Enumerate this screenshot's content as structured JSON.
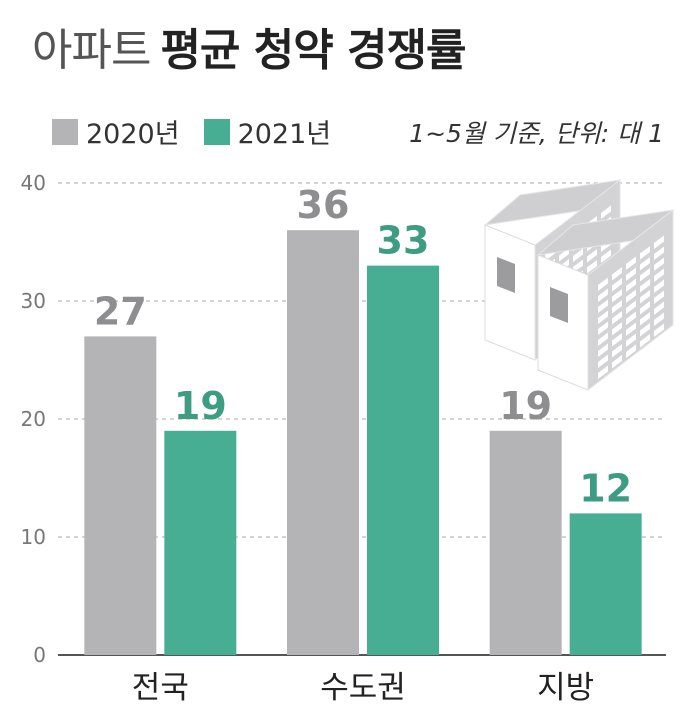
{
  "title": {
    "light": "아파트",
    "bold": "평균 청약 경쟁률"
  },
  "legend": [
    {
      "name": "2020년",
      "color": "#b4b4b6"
    },
    {
      "name": "2021년",
      "color": "#48ae93"
    }
  ],
  "note": "1~5월 기준, 단위: 대 1",
  "chart_data": {
    "type": "bar",
    "categories": [
      "전국",
      "수도권",
      "지방"
    ],
    "series": [
      {
        "name": "2020년",
        "values": [
          27,
          36,
          19
        ],
        "color": "#b4b4b6",
        "label_color": "#8e8e90"
      },
      {
        "name": "2021년",
        "values": [
          19,
          33,
          12
        ],
        "color": "#48ae93",
        "label_color": "#3e9c82"
      }
    ],
    "ylim": [
      0,
      40
    ],
    "yticks": [
      0,
      10,
      20,
      30,
      40
    ],
    "grid": true,
    "legend_position": "top-left"
  },
  "illustration": {
    "icon": "apartment-buildings-icon"
  }
}
